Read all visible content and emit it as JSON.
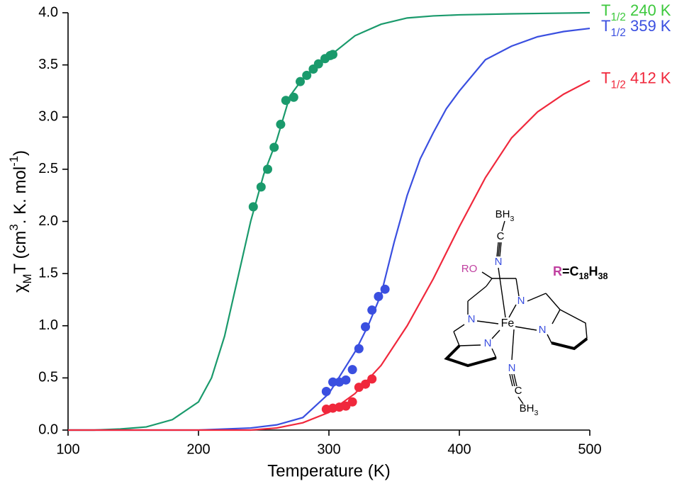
{
  "chart_data": {
    "type": "scatter",
    "xlabel": "Temperature (K)",
    "ylabel_parts": [
      {
        "text": "χ"
      },
      {
        "text": "M",
        "shift": "sub"
      },
      {
        "text": "T (cm"
      },
      {
        "text": "3",
        "shift": "sup"
      },
      {
        "text": ". K. mol"
      },
      {
        "text": "-1",
        "shift": "sup"
      },
      {
        "text": ")"
      }
    ],
    "xlim": [
      100,
      500
    ],
    "xticks": [
      100,
      200,
      300,
      400,
      500
    ],
    "ylim": [
      0,
      4
    ],
    "yticks": [
      {
        "value": 0,
        "label": "0.0"
      },
      0.5,
      {
        "value": 1,
        "label": "1.0"
      },
      1.5,
      {
        "value": 2,
        "label": "2.0"
      },
      2.5,
      {
        "value": 3,
        "label": "3.0"
      },
      3.5,
      {
        "value": 4,
        "label": "4.0"
      }
    ],
    "series": [
      {
        "color": "#1a9a6c",
        "label_color": "#3cc83c",
        "label": [
          {
            "text": "T"
          },
          {
            "text": "1/2",
            "shift": "sub"
          },
          {
            "text": " 240 K"
          }
        ],
        "points": {
          "x": [
            242,
            248,
            253,
            258,
            263,
            267,
            273,
            278,
            283,
            288,
            292,
            297,
            301,
            303
          ],
          "values": [
            2.14,
            2.33,
            2.5,
            2.71,
            2.93,
            3.16,
            3.19,
            3.34,
            3.4,
            3.46,
            3.51,
            3.56,
            3.59,
            3.6
          ]
        },
        "fit": {
          "x": [
            100,
            120,
            140,
            160,
            180,
            200,
            210,
            220,
            230,
            240,
            250,
            260,
            270,
            280,
            290,
            300,
            320,
            340,
            360,
            380,
            400,
            440,
            500
          ],
          "values": [
            0,
            0,
            0.01,
            0.03,
            0.1,
            0.27,
            0.5,
            0.9,
            1.45,
            2.0,
            2.45,
            2.78,
            3.2,
            3.37,
            3.49,
            3.58,
            3.78,
            3.89,
            3.95,
            3.97,
            3.98,
            3.99,
            4.0
          ]
        }
      },
      {
        "color": "#3a4fe0",
        "label_color": "#3a4fe0",
        "label": [
          {
            "text": "T"
          },
          {
            "text": "1/2",
            "shift": "sub"
          },
          {
            "text": " 359 K"
          }
        ],
        "points": {
          "x": [
            298,
            303,
            308,
            313,
            318,
            323,
            328,
            333,
            338,
            343
          ],
          "values": [
            0.37,
            0.46,
            0.46,
            0.48,
            0.58,
            0.78,
            0.99,
            1.15,
            1.28,
            1.35
          ]
        },
        "fit": {
          "x": [
            100,
            200,
            240,
            260,
            280,
            300,
            320,
            330,
            340,
            350,
            360,
            370,
            380,
            390,
            400,
            420,
            440,
            460,
            480,
            500
          ],
          "values": [
            0,
            0,
            0.02,
            0.05,
            0.12,
            0.35,
            0.75,
            1.0,
            1.3,
            1.8,
            2.25,
            2.6,
            2.85,
            3.08,
            3.25,
            3.55,
            3.68,
            3.77,
            3.82,
            3.85
          ]
        }
      },
      {
        "color": "#f0283c",
        "label_color": "#f0283c",
        "label": [
          {
            "text": "T"
          },
          {
            "text": "1/2",
            "shift": "sub"
          },
          {
            "text": " 412 K"
          }
        ],
        "points": {
          "x": [
            298,
            303,
            308,
            313,
            318,
            323,
            328,
            333
          ],
          "values": [
            0.2,
            0.21,
            0.22,
            0.23,
            0.27,
            0.41,
            0.44,
            0.49
          ]
        },
        "fit": {
          "x": [
            100,
            240,
            260,
            280,
            300,
            320,
            340,
            360,
            380,
            400,
            420,
            440,
            460,
            480,
            500
          ],
          "values": [
            0,
            0,
            0.02,
            0.07,
            0.17,
            0.35,
            0.62,
            1.0,
            1.45,
            1.95,
            2.42,
            2.8,
            3.05,
            3.22,
            3.35
          ]
        }
      }
    ]
  },
  "structure": {
    "labels": [
      {
        "parts": [
          {
            "text": "BH"
          },
          {
            "text": "3",
            "shift": "sub"
          }
        ],
        "color": "#000000"
      },
      {
        "parts": [
          {
            "text": "C"
          }
        ],
        "color": "#000000"
      },
      {
        "parts": [
          {
            "text": "N"
          }
        ],
        "color": "#3a4fe0"
      },
      {
        "parts": [
          {
            "text": "RO"
          }
        ],
        "color": "#c040a0"
      },
      {
        "parts": [
          {
            "text": "N"
          }
        ],
        "color": "#3a4fe0"
      },
      {
        "parts": [
          {
            "text": "N"
          }
        ],
        "color": "#3a4fe0"
      },
      {
        "parts": [
          {
            "text": "Fe"
          }
        ],
        "color": "#000000"
      },
      {
        "parts": [
          {
            "text": "N"
          }
        ],
        "color": "#3a4fe0"
      },
      {
        "parts": [
          {
            "text": "N"
          }
        ],
        "color": "#3a4fe0"
      },
      {
        "parts": [
          {
            "text": "N"
          }
        ],
        "color": "#3a4fe0"
      },
      {
        "parts": [
          {
            "text": "C"
          }
        ],
        "color": "#000000"
      },
      {
        "parts": [
          {
            "text": "BH"
          },
          {
            "text": "3",
            "shift": "sub"
          }
        ],
        "color": "#000000"
      },
      {
        "parts": [
          {
            "text": "R",
            "color": "#c040a0"
          },
          {
            "text": "=C"
          },
          {
            "text": "18",
            "shift": "sub"
          },
          {
            "text": "H"
          },
          {
            "text": "38",
            "shift": "sub"
          }
        ],
        "color": "#000000",
        "bold": true
      }
    ]
  }
}
